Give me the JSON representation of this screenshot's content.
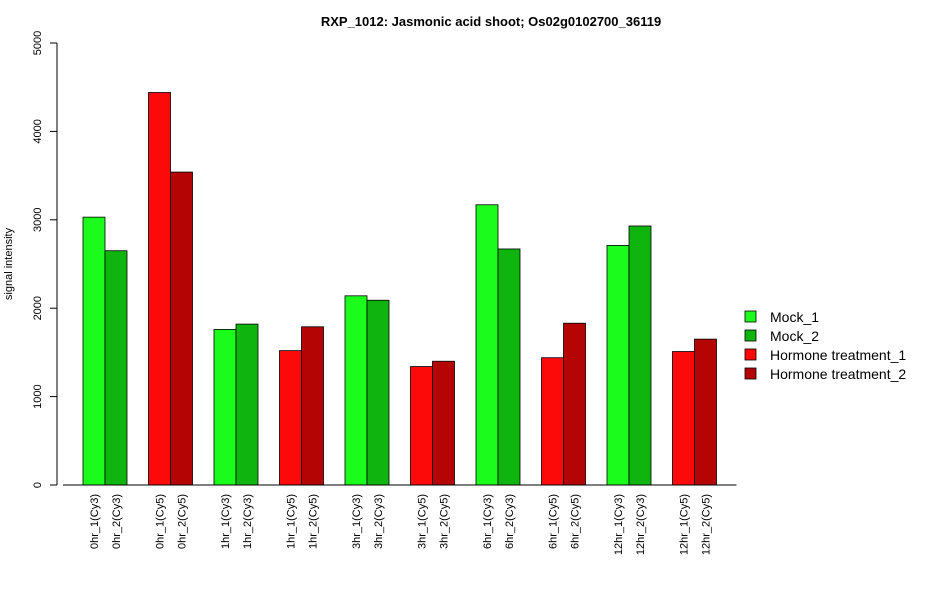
{
  "chart_data": {
    "type": "bar",
    "title": "RXP_1012: Jasmonic acid shoot; Os02g0102700_36119",
    "ylabel": "signal intensity",
    "xlabel": "",
    "ylim": [
      0,
      5000
    ],
    "yticks": [
      "0",
      "1000",
      "2000",
      "3000",
      "4000",
      "5000"
    ],
    "grid": false,
    "legend_position": "right",
    "series": [
      {
        "name": "Mock_1",
        "color": "#1cfc1c"
      },
      {
        "name": "Mock_2",
        "color": "#0fb40f"
      },
      {
        "name": "Hormone treatment_1",
        "color": "#fc0a0a"
      },
      {
        "name": "Hormone treatment_2",
        "color": "#b40404"
      }
    ],
    "bars": [
      {
        "label": "0hr_1(Cy3)",
        "value": 3030,
        "series": 0
      },
      {
        "label": "0hr_2(Cy3)",
        "value": 2650,
        "series": 1
      },
      {
        "label": "0hr_1(Cy5)",
        "value": 4440,
        "series": 2
      },
      {
        "label": "0hr_2(Cy5)",
        "value": 3540,
        "series": 3
      },
      {
        "label": "1hr_1(Cy3)",
        "value": 1760,
        "series": 0
      },
      {
        "label": "1hr_2(Cy3)",
        "value": 1820,
        "series": 1
      },
      {
        "label": "1hr_1(Cy5)",
        "value": 1520,
        "series": 2
      },
      {
        "label": "1hr_2(Cy5)",
        "value": 1790,
        "series": 3
      },
      {
        "label": "3hr_1(Cy3)",
        "value": 2140,
        "series": 0
      },
      {
        "label": "3hr_2(Cy3)",
        "value": 2090,
        "series": 1
      },
      {
        "label": "3hr_1(Cy5)",
        "value": 1340,
        "series": 2
      },
      {
        "label": "3hr_2(Cy5)",
        "value": 1400,
        "series": 3
      },
      {
        "label": "6hr_1(Cy3)",
        "value": 3170,
        "series": 0
      },
      {
        "label": "6hr_2(Cy3)",
        "value": 2670,
        "series": 1
      },
      {
        "label": "6hr_1(Cy5)",
        "value": 1440,
        "series": 2
      },
      {
        "label": "6hr_2(Cy5)",
        "value": 1830,
        "series": 3
      },
      {
        "label": "12hr_1(Cy3)",
        "value": 2710,
        "series": 0
      },
      {
        "label": "12hr_2(Cy3)",
        "value": 2930,
        "series": 1
      },
      {
        "label": "12hr_1(Cy5)",
        "value": 1510,
        "series": 2
      },
      {
        "label": "12hr_2(Cy5)",
        "value": 1650,
        "series": 3
      }
    ]
  }
}
